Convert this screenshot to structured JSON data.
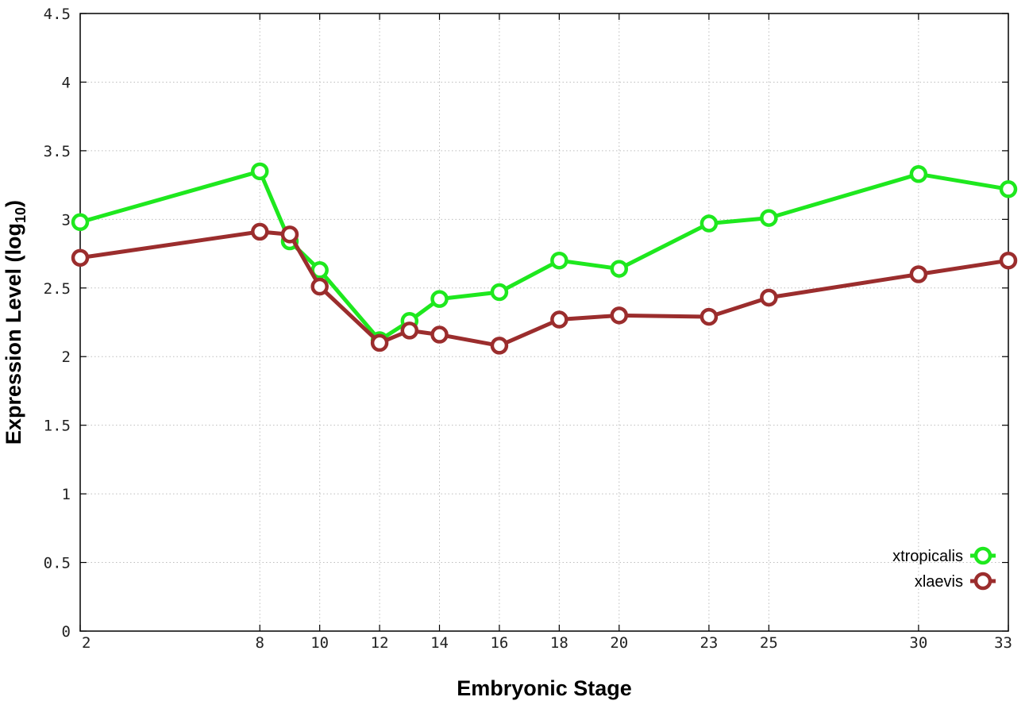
{
  "chart_data": {
    "type": "line",
    "xlabel": "Embryonic Stage",
    "ylabel_main": "Expression Level (log",
    "ylabel_sub": "10",
    "ylabel_close": ")",
    "xlim": [
      2,
      33
    ],
    "ylim": [
      0,
      4.5
    ],
    "x_ticks": [
      2,
      8,
      10,
      12,
      14,
      16,
      18,
      20,
      23,
      25,
      30,
      33
    ],
    "y_ticks": [
      0,
      0.5,
      1,
      1.5,
      2,
      2.5,
      3,
      3.5,
      4,
      4.5
    ],
    "y_tick_labels": [
      "0",
      "0.5",
      "1",
      "1.5",
      "2",
      "2.5",
      "3",
      "3.5",
      "4",
      "4.5"
    ],
    "grid": true,
    "legend_position": "bottom-right",
    "series": [
      {
        "name": "xtropicalis",
        "color": "#1ee81e",
        "x": [
          2,
          8,
          9,
          10,
          12,
          13,
          14,
          16,
          18,
          20,
          23,
          25,
          30,
          33
        ],
        "y": [
          2.98,
          3.35,
          2.84,
          2.63,
          2.12,
          2.26,
          2.42,
          2.47,
          2.7,
          2.64,
          2.97,
          3.01,
          3.33,
          3.22
        ]
      },
      {
        "name": "xlaevis",
        "color": "#9b2d2d",
        "x": [
          2,
          8,
          9,
          10,
          12,
          13,
          14,
          16,
          18,
          20,
          23,
          25,
          30,
          33
        ],
        "y": [
          2.72,
          2.91,
          2.89,
          2.51,
          2.1,
          2.19,
          2.16,
          2.08,
          2.27,
          2.3,
          2.29,
          2.43,
          2.6,
          2.7
        ]
      }
    ]
  }
}
